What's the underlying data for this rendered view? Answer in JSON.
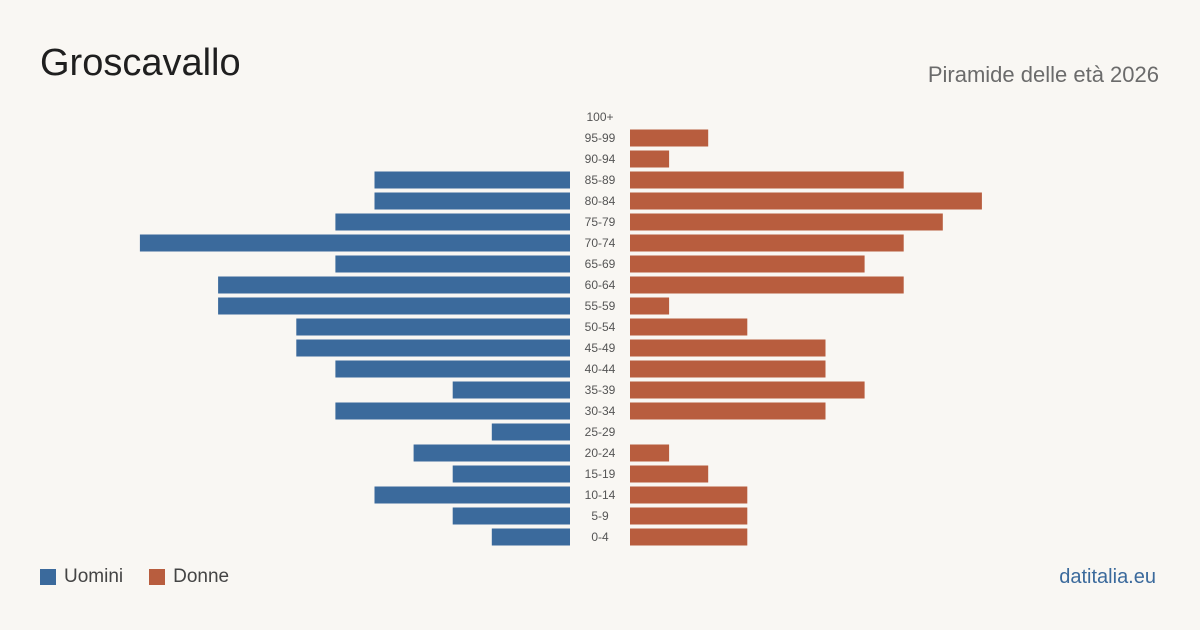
{
  "title": "Groscavallo",
  "subtitle": "Piramide delle età 2026",
  "site": "datitalia.eu",
  "colors": {
    "male": "#3b6a9c",
    "female": "#b85d3e",
    "background": "#f9f7f3"
  },
  "legend": {
    "male_label": "Uomini",
    "female_label": "Donne"
  },
  "chart_data": {
    "type": "bar",
    "orientation": "horizontal-pyramid",
    "categories": [
      "100+",
      "95-99",
      "90-94",
      "85-89",
      "80-84",
      "75-79",
      "70-74",
      "65-69",
      "60-64",
      "55-59",
      "50-54",
      "45-49",
      "40-44",
      "35-39",
      "30-34",
      "25-29",
      "20-24",
      "15-19",
      "10-14",
      "5-9",
      "0-4"
    ],
    "series": [
      {
        "name": "Uomini",
        "values": [
          0,
          0,
          0,
          5,
          5,
          6,
          11,
          6,
          9,
          9,
          7,
          7,
          6,
          3,
          6,
          2,
          4,
          3,
          5,
          3,
          2
        ]
      },
      {
        "name": "Donne",
        "values": [
          0,
          2,
          1,
          7,
          9,
          8,
          7,
          6,
          7,
          1,
          3,
          5,
          5,
          6,
          5,
          0,
          1,
          2,
          3,
          3,
          3
        ]
      }
    ],
    "legend_position": "bottom-left",
    "grid": false
  }
}
